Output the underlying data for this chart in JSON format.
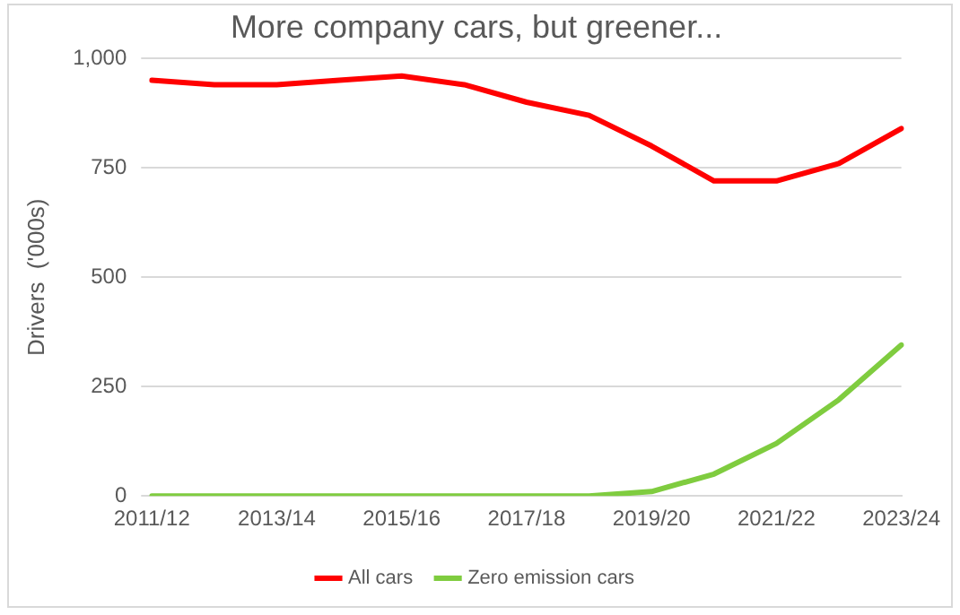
{
  "chart_data": {
    "type": "line",
    "title": "More company cars, but greener...",
    "ylabel": "Drivers  ('000s)",
    "categories": [
      "2011/12",
      null,
      "2013/14",
      null,
      "2015/16",
      null,
      "2017/18",
      null,
      "2019/20",
      null,
      "2021/22",
      null,
      "2023/24"
    ],
    "series": [
      {
        "name": "All cars",
        "color": "#ff0000",
        "values": [
          950,
          940,
          940,
          950,
          960,
          940,
          900,
          870,
          800,
          720,
          720,
          760,
          840
        ]
      },
      {
        "name": "Zero emission cars",
        "color": "#7fcc3f",
        "values": [
          0,
          0,
          0,
          0,
          0,
          0,
          0,
          0,
          10,
          50,
          120,
          220,
          345
        ]
      }
    ],
    "ylim": [
      0,
      1000
    ],
    "yticks": [
      {
        "value": 0,
        "label": "0"
      },
      {
        "value": 250,
        "label": "250"
      },
      {
        "value": 500,
        "label": "500"
      },
      {
        "value": 750,
        "label": "750"
      },
      {
        "value": 1000,
        "label": "1,000"
      }
    ],
    "grid": "y",
    "legend": "bottom",
    "marker": "none",
    "line_style": "solid"
  }
}
